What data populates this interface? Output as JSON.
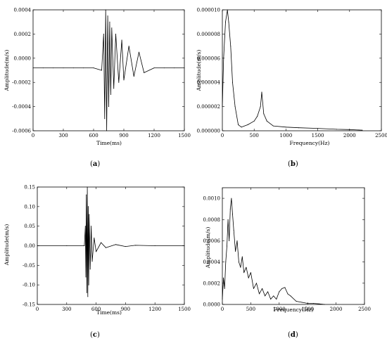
{
  "figure": {
    "panels": [
      {
        "caption_before": "(",
        "caption_letter": "a",
        "caption_after": ")"
      },
      {
        "caption_before": "(",
        "caption_letter": "b",
        "caption_after": ")"
      },
      {
        "caption_before": "(",
        "caption_letter": "c",
        "caption_after": ")"
      },
      {
        "caption_before": "(",
        "caption_letter": "d",
        "caption_after": ")"
      }
    ]
  },
  "chart_data": [
    {
      "type": "line",
      "xlabel": "Time(ms)",
      "ylabel": "Amplitude(m/s)",
      "xlim": [
        0,
        1500
      ],
      "ylim": [
        -0.0006,
        0.0004
      ],
      "x_ticks": [
        0,
        300,
        600,
        900,
        1200,
        1500
      ],
      "x_tick_labels": [
        "0",
        "300",
        "600",
        "900",
        "1200",
        "1500"
      ],
      "y_ticks": [
        -0.0006,
        -0.0004,
        -0.0002,
        0.0,
        0.0002,
        0.0004
      ],
      "y_tick_labels": [
        "-0.0006",
        "-0.0004",
        "-0.0002",
        "0.0000",
        "0.0002",
        "0.0004"
      ],
      "grid": false,
      "series": [
        {
          "x": [
            0,
            100,
            200,
            300,
            400,
            500,
            600,
            680,
            700,
            710,
            720,
            730,
            740,
            750,
            760,
            770,
            780,
            800,
            820,
            850,
            880,
            900,
            950,
            1000,
            1050,
            1100,
            1200,
            1300,
            1400,
            1500
          ],
          "y": [
            -8e-05,
            -8e-05,
            -8e-05,
            -8e-05,
            -8e-05,
            -8e-05,
            -8e-05,
            -0.0001,
            0.0002,
            -0.0005,
            0.0004,
            -0.0006,
            0.00035,
            -0.0004,
            0.0003,
            -0.0003,
            0.00025,
            -0.00025,
            0.0002,
            -0.0002,
            0.00015,
            -0.00018,
            0.0001,
            -0.00015,
            5e-05,
            -0.00012,
            -8e-05,
            -8e-05,
            -8e-05,
            -8e-05
          ]
        }
      ]
    },
    {
      "type": "line",
      "xlabel": "Frequency(Hz)",
      "ylabel": "Amplitude(m/s)",
      "xlim": [
        0,
        2500
      ],
      "ylim": [
        0,
        1e-05
      ],
      "x_ticks": [
        0,
        500,
        1000,
        1500,
        2000,
        2500
      ],
      "x_tick_labels": [
        "0",
        "500",
        "1000",
        "1500",
        "2000",
        "2500"
      ],
      "y_ticks": [
        0,
        2e-06,
        4e-06,
        6e-06,
        8e-06,
        1e-05
      ],
      "y_tick_labels": [
        "0.000000",
        "0.000002",
        "0.000004",
        "0.000006",
        "0.000008",
        "0.000010"
      ],
      "grid": false,
      "series": [
        {
          "x": [
            0,
            20,
            50,
            80,
            100,
            130,
            160,
            200,
            250,
            300,
            400,
            500,
            550,
            600,
            620,
            650,
            700,
            800,
            1000,
            1200,
            1500,
            1800,
            2000,
            2200
          ],
          "y": [
            2e-06,
            6e-06,
            9e-06,
            1e-05,
            9e-06,
            7e-06,
            4e-06,
            2e-06,
            5e-07,
            3e-07,
            5e-07,
            8e-07,
            1.2e-06,
            2e-06,
            3.2e-06,
            1.4e-06,
            8e-07,
            4e-07,
            3e-07,
            2.5e-07,
            2e-07,
            1.2e-07,
            1e-07,
            5e-08
          ]
        }
      ]
    },
    {
      "type": "line",
      "xlabel": "Time(ms)",
      "ylabel": "Amplitude(m/s)",
      "xlim": [
        0,
        1500
      ],
      "ylim": [
        -0.15,
        0.15
      ],
      "x_ticks": [
        0,
        300,
        600,
        900,
        1200,
        1500
      ],
      "x_tick_labels": [
        "0",
        "300",
        "600",
        "900",
        "1200",
        "1500"
      ],
      "y_ticks": [
        -0.15,
        -0.1,
        -0.05,
        0.0,
        0.05,
        0.1,
        0.15
      ],
      "y_tick_labels": [
        "-0.15",
        "-0.10",
        "-0.05",
        "0.00",
        "0.05",
        "0.10",
        "0.15"
      ],
      "grid": false,
      "series": [
        {
          "x": [
            0,
            300,
            480,
            490,
            495,
            500,
            505,
            510,
            515,
            520,
            525,
            530,
            540,
            550,
            560,
            580,
            600,
            650,
            700,
            800,
            900,
            1000,
            1200,
            1500
          ],
          "y": [
            0,
            0,
            0,
            0.05,
            -0.08,
            0.13,
            -0.12,
            0.15,
            -0.13,
            0.1,
            -0.1,
            0.08,
            -0.06,
            0.05,
            -0.04,
            0.02,
            -0.015,
            0.008,
            -0.005,
            0.003,
            -0.002,
            0.001,
            0,
            0
          ]
        }
      ]
    },
    {
      "type": "line",
      "xlabel": "Frequency(Hz)",
      "ylabel": "Amplitude(m/s)",
      "xlim": [
        0,
        2500
      ],
      "ylim": [
        0,
        0.0011
      ],
      "x_ticks": [
        0,
        500,
        1000,
        1500,
        2000,
        2500
      ],
      "x_tick_labels": [
        "0",
        "500",
        "1000",
        "1500",
        "2000",
        "2500"
      ],
      "y_ticks": [
        0,
        0.0002,
        0.0004,
        0.0006,
        0.0008,
        0.001
      ],
      "y_tick_labels": [
        "0.0000",
        "0.0002",
        "0.0004",
        "0.0006",
        "0.0008",
        "0.0010"
      ],
      "grid": false,
      "series": [
        {
          "x": [
            0,
            20,
            40,
            60,
            80,
            100,
            120,
            140,
            160,
            180,
            200,
            230,
            260,
            290,
            320,
            350,
            380,
            420,
            460,
            500,
            550,
            600,
            650,
            700,
            750,
            800,
            850,
            900,
            950,
            1000,
            1050,
            1100,
            1150,
            1200,
            1300,
            1400,
            1500,
            1600,
            1700,
            1800
          ],
          "y": [
            5e-05,
            0.00025,
            0.00015,
            0.0004,
            0.00055,
            0.0008,
            0.0006,
            0.0009,
            0.001,
            0.00085,
            0.0007,
            0.0005,
            0.0006,
            0.0004,
            0.00035,
            0.00045,
            0.0003,
            0.00035,
            0.00025,
            0.0003,
            0.00015,
            0.0002,
            0.0001,
            0.00015,
            8e-05,
            0.00012,
            5e-05,
            8e-05,
            5e-05,
            0.00012,
            0.00015,
            0.00016,
            0.0001,
            8e-05,
            3e-05,
            2e-05,
            1e-05,
            1e-05,
            5e-06,
            0
          ]
        }
      ]
    }
  ]
}
